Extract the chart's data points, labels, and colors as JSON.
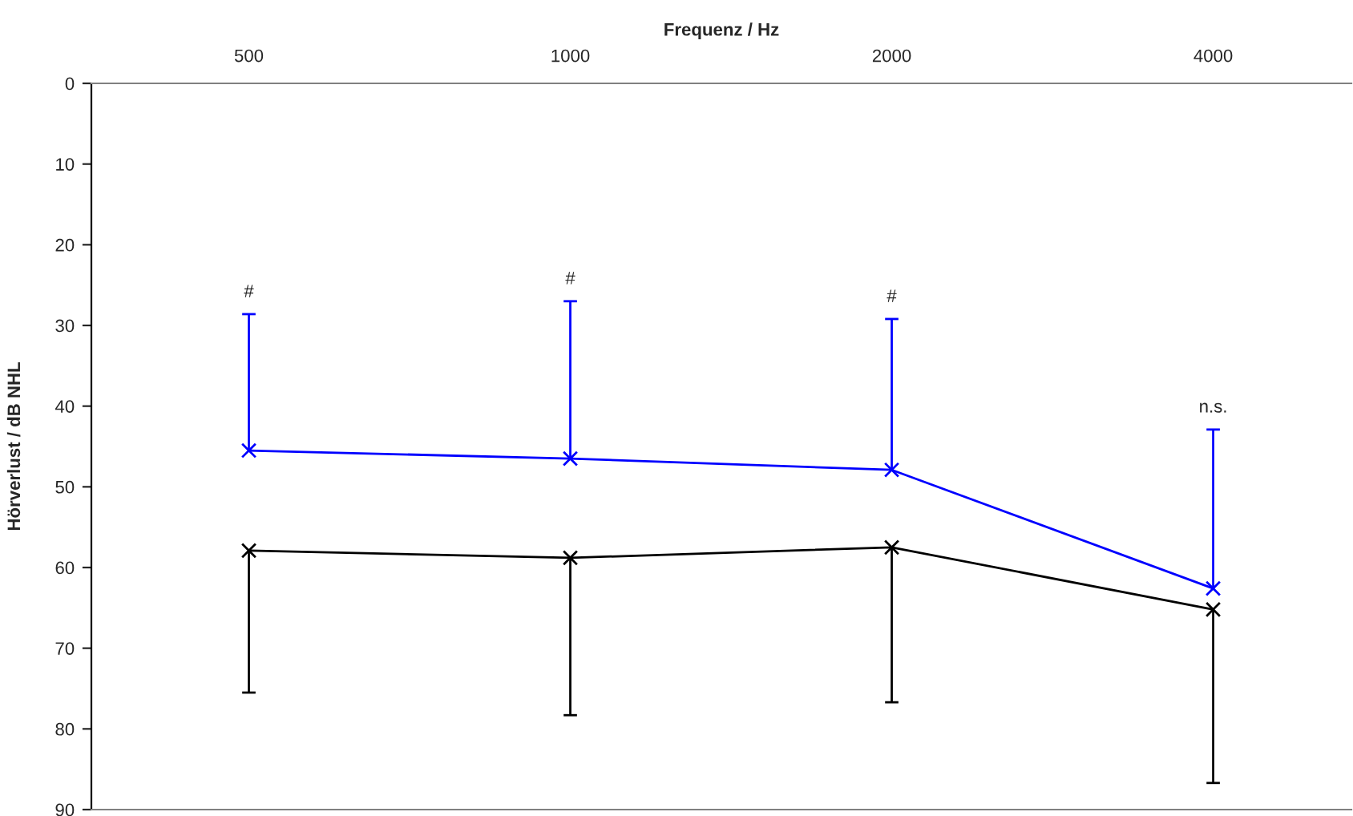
{
  "chart_data": {
    "type": "line",
    "xlabel": "Frequenz / Hz",
    "ylabel": "Hörverlust / dB NHL",
    "categories": [
      "500",
      "1000",
      "2000",
      "4000"
    ],
    "series": [
      {
        "color": "#0000ff",
        "values": [
          45.5,
          46.5,
          47.9,
          62.6
        ],
        "errors": [
          [
            28.6,
            45.5
          ],
          [
            27.0,
            46.5
          ],
          [
            29.2,
            47.9
          ],
          [
            42.9,
            62.6
          ]
        ]
      },
      {
        "color": "#000000",
        "values": [
          57.9,
          58.8,
          57.5,
          65.2
        ],
        "errors": [
          [
            57.9,
            75.5
          ],
          [
            58.8,
            78.3
          ],
          [
            57.5,
            76.7
          ],
          [
            65.2,
            86.7
          ]
        ]
      }
    ],
    "ylim": [
      90,
      0
    ],
    "yticks": [
      0,
      10,
      20,
      30,
      40,
      50,
      60,
      70,
      80,
      90
    ],
    "annotations": [
      "#",
      "#",
      "#",
      "n.s."
    ],
    "marker": "cross",
    "line_style": "solid",
    "grid": false,
    "legend": false
  }
}
